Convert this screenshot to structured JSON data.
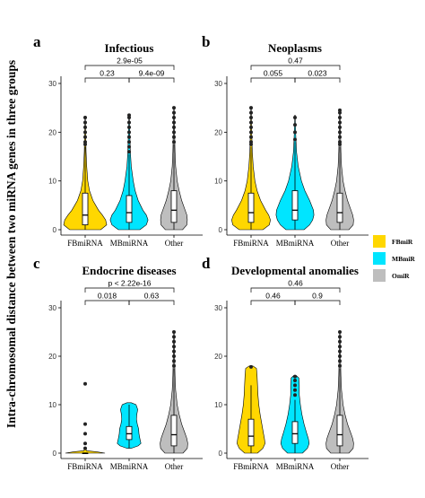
{
  "figure": {
    "ylabel": "Intra-chromosomal distance between two miRNA genes in three groups",
    "legend": [
      {
        "label": "FBmiR",
        "color": "#FFD700"
      },
      {
        "label": "MBmiR",
        "color": "#00E5FF"
      },
      {
        "label": "OmiR",
        "color": "#BEBEBE"
      }
    ]
  },
  "chart_data": [
    {
      "type": "violin",
      "letter": "a",
      "title": "Infectious",
      "categories": [
        "FBmiRNA",
        "MBmiRNA",
        "Other"
      ],
      "colors": [
        "#FFD700",
        "#00E5FF",
        "#BEBEBE"
      ],
      "ylim": [
        0,
        30
      ],
      "yticks": [
        0,
        10,
        20,
        30
      ],
      "violins": [
        {
          "name": "FBmiRNA",
          "profile": [
            [
              0,
              0.72
            ],
            [
              1,
              1.0
            ],
            [
              2,
              0.95
            ],
            [
              3,
              0.8
            ],
            [
              4,
              0.62
            ],
            [
              6,
              0.36
            ],
            [
              8,
              0.2
            ],
            [
              10,
              0.12
            ],
            [
              13,
              0.07
            ],
            [
              16,
              0.04
            ],
            [
              19,
              0.025
            ],
            [
              23,
              0.01
            ]
          ],
          "min": 0,
          "q1": 1,
          "median": 3,
          "q3": 7.5,
          "max": 17,
          "outliers": [
            17.5,
            18,
            19,
            20,
            21,
            22,
            23
          ]
        },
        {
          "name": "MBmiRNA",
          "profile": [
            [
              0,
              0.5
            ],
            [
              1,
              0.8
            ],
            [
              2,
              0.88
            ],
            [
              3,
              0.8
            ],
            [
              4,
              0.64
            ],
            [
              6,
              0.42
            ],
            [
              8,
              0.28
            ],
            [
              10,
              0.19
            ],
            [
              13,
              0.1
            ],
            [
              16,
              0.06
            ],
            [
              20,
              0.03
            ],
            [
              23.5,
              0.01
            ]
          ],
          "min": 0,
          "q1": 1.5,
          "median": 3.5,
          "q3": 7,
          "max": 15.5,
          "outliers": [
            16,
            17,
            18,
            19,
            20,
            21,
            22,
            23,
            23.5
          ]
        },
        {
          "name": "Other",
          "profile": [
            [
              0,
              0.4
            ],
            [
              1,
              0.6
            ],
            [
              2,
              0.62
            ],
            [
              3,
              0.6
            ],
            [
              4,
              0.52
            ],
            [
              6,
              0.36
            ],
            [
              8,
              0.24
            ],
            [
              10,
              0.15
            ],
            [
              13,
              0.08
            ],
            [
              16,
              0.05
            ],
            [
              20,
              0.03
            ],
            [
              25,
              0.01
            ]
          ],
          "min": 0,
          "q1": 1.5,
          "median": 4,
          "q3": 8,
          "max": 17.5,
          "outliers": [
            18,
            19,
            20,
            21,
            22,
            23,
            24,
            25
          ]
        }
      ],
      "comparisons": [
        {
          "label": "2.9e-05",
          "from": 0,
          "to": 2
        },
        {
          "label": "0.23",
          "from": 0,
          "to": 1
        },
        {
          "label": "9.4e-09",
          "from": 1,
          "to": 2
        }
      ]
    },
    {
      "type": "violin",
      "letter": "b",
      "title": "Neoplasms",
      "categories": [
        "FBmiRNA",
        "MBmiRNA",
        "Other"
      ],
      "colors": [
        "#FFD700",
        "#00E5FF",
        "#BEBEBE"
      ],
      "ylim": [
        0,
        30
      ],
      "yticks": [
        0,
        10,
        20,
        30
      ],
      "violins": [
        {
          "name": "FBmiRNA",
          "profile": [
            [
              0,
              0.55
            ],
            [
              1,
              0.85
            ],
            [
              2,
              0.9
            ],
            [
              3,
              0.82
            ],
            [
              4,
              0.68
            ],
            [
              6,
              0.44
            ],
            [
              8,
              0.28
            ],
            [
              10,
              0.18
            ],
            [
              13,
              0.1
            ],
            [
              16,
              0.06
            ],
            [
              20,
              0.03
            ],
            [
              25,
              0.01
            ]
          ],
          "min": 0,
          "q1": 1.5,
          "median": 3.5,
          "q3": 7.5,
          "max": 17,
          "outliers": [
            17.5,
            18,
            19,
            20,
            21,
            22,
            23,
            24,
            25
          ]
        },
        {
          "name": "MBmiRNA",
          "profile": [
            [
              0,
              0.42
            ],
            [
              1,
              0.68
            ],
            [
              2,
              0.82
            ],
            [
              3,
              0.88
            ],
            [
              4,
              0.86
            ],
            [
              6,
              0.68
            ],
            [
              8,
              0.46
            ],
            [
              10,
              0.3
            ],
            [
              13,
              0.15
            ],
            [
              16,
              0.07
            ],
            [
              20,
              0.03
            ],
            [
              23.5,
              0.01
            ]
          ],
          "min": 0,
          "q1": 2,
          "median": 4,
          "q3": 8,
          "max": 18,
          "outliers": [
            18.5,
            20,
            21.5,
            23
          ]
        },
        {
          "name": "Other",
          "profile": [
            [
              0,
              0.42
            ],
            [
              1,
              0.62
            ],
            [
              2,
              0.64
            ],
            [
              3,
              0.6
            ],
            [
              4,
              0.52
            ],
            [
              6,
              0.36
            ],
            [
              8,
              0.24
            ],
            [
              10,
              0.15
            ],
            [
              13,
              0.08
            ],
            [
              16,
              0.05
            ],
            [
              20,
              0.03
            ],
            [
              24.5,
              0.01
            ]
          ],
          "min": 0,
          "q1": 1.5,
          "median": 3.5,
          "q3": 7.5,
          "max": 17,
          "outliers": [
            17.5,
            18,
            19,
            20,
            21,
            22,
            23,
            24,
            24.5
          ]
        }
      ],
      "comparisons": [
        {
          "label": "0.47",
          "from": 0,
          "to": 2
        },
        {
          "label": "0.055",
          "from": 0,
          "to": 1
        },
        {
          "label": "0.023",
          "from": 1,
          "to": 2
        }
      ]
    },
    {
      "type": "violin",
      "letter": "c",
      "title": "Endocrine diseases",
      "categories": [
        "FBmiRNA",
        "MBmiRNA",
        "Other"
      ],
      "colors": [
        "#FFD700",
        "#00E5FF",
        "#BEBEBE"
      ],
      "ylim": [
        0,
        30
      ],
      "yticks": [
        0,
        10,
        20,
        30
      ],
      "violins": [
        {
          "name": "FBmiRNA",
          "profile": [
            [
              0,
              0.92
            ],
            [
              0.25,
              0.55
            ],
            [
              0.5,
              0.06
            ],
            [
              1,
              0.02
            ]
          ],
          "min": 0,
          "q1": 0,
          "median": 0,
          "q3": 0,
          "max": 0,
          "outliers": [
            1,
            2,
            4,
            6,
            14.3
          ]
        },
        {
          "name": "MBmiRNA",
          "profile": [
            [
              1,
              0.1
            ],
            [
              1.5,
              0.42
            ],
            [
              2,
              0.55
            ],
            [
              3,
              0.5
            ],
            [
              4,
              0.46
            ],
            [
              5,
              0.44
            ],
            [
              6,
              0.38
            ],
            [
              7,
              0.34
            ],
            [
              8,
              0.36
            ],
            [
              9,
              0.4
            ],
            [
              10,
              0.32
            ],
            [
              10.4,
              0.1
            ]
          ],
          "min": 1,
          "q1": 2.8,
          "median": 4,
          "q3": 5.5,
          "max": 10,
          "outliers": []
        },
        {
          "name": "Other",
          "profile": [
            [
              0,
              0.42
            ],
            [
              1,
              0.62
            ],
            [
              2,
              0.64
            ],
            [
              3,
              0.6
            ],
            [
              4,
              0.52
            ],
            [
              6,
              0.36
            ],
            [
              8,
              0.24
            ],
            [
              10,
              0.15
            ],
            [
              13,
              0.08
            ],
            [
              16,
              0.05
            ],
            [
              20,
              0.03
            ],
            [
              25,
              0.01
            ]
          ],
          "min": 0,
          "q1": 1.5,
          "median": 3.8,
          "q3": 7.8,
          "max": 17.5,
          "outliers": [
            18,
            19,
            20,
            21,
            22,
            23,
            24,
            25
          ]
        }
      ],
      "comparisons": [
        {
          "label": "p < 2.22e-16",
          "from": 0,
          "to": 2
        },
        {
          "label": "0.018",
          "from": 0,
          "to": 1
        },
        {
          "label": "0.63",
          "from": 1,
          "to": 2
        }
      ]
    },
    {
      "type": "violin",
      "letter": "d",
      "title": "Developmental anomalies",
      "categories": [
        "FBmiRNA",
        "MBmiRNA",
        "Other"
      ],
      "colors": [
        "#FFD700",
        "#00E5FF",
        "#BEBEBE"
      ],
      "ylim": [
        0,
        30
      ],
      "yticks": [
        0,
        10,
        20,
        30
      ],
      "violins": [
        {
          "name": "FBmiRNA",
          "profile": [
            [
              0,
              0.3
            ],
            [
              1,
              0.55
            ],
            [
              2,
              0.65
            ],
            [
              3,
              0.62
            ],
            [
              4,
              0.58
            ],
            [
              6,
              0.5
            ],
            [
              8,
              0.42
            ],
            [
              10,
              0.36
            ],
            [
              12,
              0.32
            ],
            [
              14,
              0.3
            ],
            [
              16,
              0.28
            ],
            [
              17.5,
              0.25
            ],
            [
              18,
              0.08
            ]
          ],
          "min": 0,
          "q1": 1.5,
          "median": 3.5,
          "q3": 7,
          "max": 14,
          "outliers": [
            17.8
          ]
        },
        {
          "name": "MBmiRNA",
          "profile": [
            [
              0,
              0.35
            ],
            [
              1,
              0.58
            ],
            [
              2,
              0.66
            ],
            [
              3,
              0.62
            ],
            [
              4,
              0.55
            ],
            [
              6,
              0.42
            ],
            [
              8,
              0.32
            ],
            [
              10,
              0.25
            ],
            [
              12,
              0.2
            ],
            [
              14,
              0.2
            ],
            [
              15.5,
              0.18
            ],
            [
              16,
              0.06
            ]
          ],
          "min": 0,
          "q1": 2,
          "median": 4,
          "q3": 6.5,
          "max": 11,
          "outliers": [
            12,
            13,
            14,
            15,
            15.8
          ]
        },
        {
          "name": "Other",
          "profile": [
            [
              0,
              0.42
            ],
            [
              1,
              0.62
            ],
            [
              2,
              0.64
            ],
            [
              3,
              0.6
            ],
            [
              4,
              0.52
            ],
            [
              6,
              0.36
            ],
            [
              8,
              0.24
            ],
            [
              10,
              0.15
            ],
            [
              13,
              0.08
            ],
            [
              16,
              0.05
            ],
            [
              20,
              0.03
            ],
            [
              25,
              0.01
            ]
          ],
          "min": 0,
          "q1": 1.5,
          "median": 3.8,
          "q3": 7.8,
          "max": 17.5,
          "outliers": [
            18,
            19,
            20,
            21,
            22,
            23,
            24,
            25
          ]
        }
      ],
      "comparisons": [
        {
          "label": "0.46",
          "from": 0,
          "to": 2
        },
        {
          "label": "0.46",
          "from": 0,
          "to": 1
        },
        {
          "label": "0.9",
          "from": 1,
          "to": 2
        }
      ]
    }
  ]
}
